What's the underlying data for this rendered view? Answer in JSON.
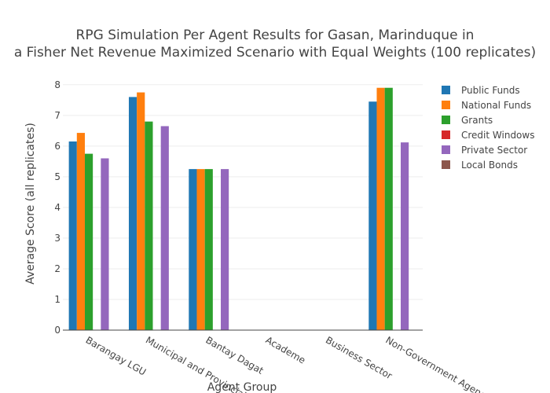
{
  "chart_data": {
    "type": "bar",
    "title": "RPG Simulation Per Agent Results for Gasan, Marinduque in",
    "title_line2": "a Fisher Net Revenue Maximized Scenario with Equal Weights (100 replicates)",
    "xlabel": "Agent Group",
    "ylabel": "Average Score (all replicates)",
    "ylim": [
      0,
      8.2
    ],
    "yticks": [
      0,
      1,
      2,
      3,
      4,
      5,
      6,
      7,
      8
    ],
    "grid": true,
    "legend_position": "top-right",
    "categories": [
      "Barangay LGU",
      "Municipal and Provincial LGU",
      "Bantay Dagat",
      "Academe",
      "Business Sector",
      "Non-Government Agencies"
    ],
    "series": [
      {
        "name": "Public Funds",
        "color": "#1f77b4",
        "values": [
          6.15,
          7.6,
          5.25,
          0,
          0,
          7.45
        ]
      },
      {
        "name": "National Funds",
        "color": "#ff7f0e",
        "values": [
          6.43,
          7.75,
          5.25,
          0,
          0,
          7.9
        ]
      },
      {
        "name": "Grants",
        "color": "#2ca02c",
        "values": [
          5.75,
          6.8,
          5.25,
          0,
          0,
          7.9
        ]
      },
      {
        "name": "Credit Windows",
        "color": "#d62728",
        "values": [
          0,
          0,
          0,
          0,
          0,
          0
        ]
      },
      {
        "name": "Private Sector",
        "color": "#9467bd",
        "values": [
          5.6,
          6.65,
          5.25,
          0,
          0,
          6.12
        ]
      },
      {
        "name": "Local Bonds",
        "color": "#8c564b",
        "values": [
          0,
          0,
          0,
          0,
          0,
          0
        ]
      }
    ]
  }
}
